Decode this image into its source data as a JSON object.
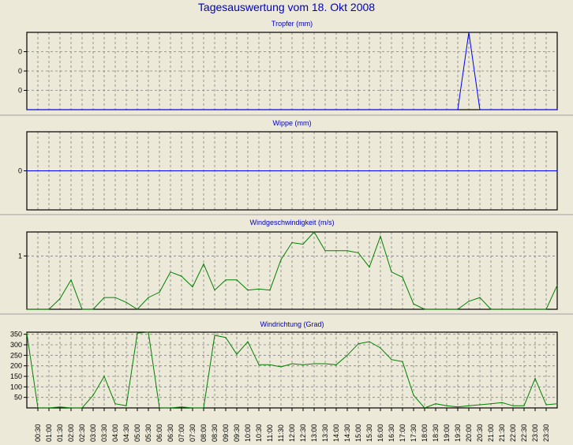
{
  "page": {
    "title": "Tagesauswertung vom 18. Okt 2008"
  },
  "colors": {
    "background": "#ece9d8",
    "plot_background": "#ece9d8",
    "grid": "#808080",
    "rain": "#0000ff",
    "wind": "#008000",
    "title": "#0000c0"
  },
  "x_labels": [
    "00:30",
    "01:00",
    "01:30",
    "02:00",
    "02:30",
    "03:00",
    "03:30",
    "04:00",
    "04:30",
    "05:00",
    "05:30",
    "06:00",
    "06:30",
    "07:00",
    "07:30",
    "08:00",
    "08:30",
    "09:00",
    "09:30",
    "10:00",
    "10:30",
    "11:00",
    "11:30",
    "12:00",
    "12:30",
    "13:00",
    "13:30",
    "14:00",
    "14:30",
    "15:00",
    "15:30",
    "16:00",
    "16:30",
    "17:00",
    "17:30",
    "18:00",
    "18:30",
    "19:00",
    "19:30",
    "20:00",
    "20:30",
    "21:00",
    "21:30",
    "22:00",
    "22:30",
    "23:00",
    "23:30"
  ],
  "chart_data": [
    {
      "type": "line",
      "title": "Tropfer (mm)",
      "ylim": [
        0,
        0.4
      ],
      "yticks": [
        0.1,
        0.2,
        0.3
      ],
      "ytick_labels": [
        "0",
        "0",
        "0"
      ],
      "grid": true,
      "color": "#0000ff",
      "x": [
        "00:00",
        "00:30",
        "01:00",
        "01:30",
        "02:00",
        "02:30",
        "03:00",
        "03:30",
        "04:00",
        "04:30",
        "05:00",
        "05:30",
        "06:00",
        "06:30",
        "07:00",
        "07:30",
        "08:00",
        "08:30",
        "09:00",
        "09:30",
        "10:00",
        "10:30",
        "11:00",
        "11:30",
        "12:00",
        "12:30",
        "13:00",
        "13:30",
        "14:00",
        "14:30",
        "15:00",
        "15:30",
        "16:00",
        "16:30",
        "17:00",
        "17:30",
        "18:00",
        "18:30",
        "19:00",
        "19:30",
        "20:00",
        "20:30",
        "21:00",
        "21:30",
        "22:00",
        "22:30",
        "23:00",
        "23:30",
        "24:00"
      ],
      "values": [
        0,
        0,
        0,
        0,
        0,
        0,
        0,
        0,
        0,
        0,
        0,
        0,
        0,
        0,
        0,
        0,
        0,
        0,
        0,
        0,
        0,
        0,
        0,
        0,
        0,
        0,
        0,
        0,
        0,
        0,
        0,
        0,
        0,
        0,
        0,
        0,
        0,
        0,
        0,
        0,
        0.4,
        0,
        0,
        0,
        0,
        0,
        0,
        0,
        0
      ]
    },
    {
      "type": "line",
      "title": "Wippe (mm)",
      "ylim": [
        -1,
        1
      ],
      "yticks": [
        0
      ],
      "ytick_labels": [
        "0"
      ],
      "grid": true,
      "color": "#0000ff",
      "x": [
        "00:00",
        "24:00"
      ],
      "values": [
        0,
        0
      ]
    },
    {
      "type": "line",
      "title": "Windgeschwindigkeit (m/s)",
      "ylim": [
        0,
        1.45
      ],
      "yticks": [
        1
      ],
      "ytick_labels": [
        "1"
      ],
      "grid": true,
      "color": "#008000",
      "x": [
        "00:00",
        "00:30",
        "01:00",
        "01:30",
        "02:00",
        "02:30",
        "03:00",
        "03:30",
        "04:00",
        "04:30",
        "05:00",
        "05:30",
        "06:00",
        "06:30",
        "07:00",
        "07:30",
        "08:00",
        "08:30",
        "09:00",
        "09:30",
        "10:00",
        "10:30",
        "11:00",
        "11:30",
        "12:00",
        "12:30",
        "13:00",
        "13:30",
        "14:00",
        "14:30",
        "15:00",
        "15:30",
        "16:00",
        "16:30",
        "17:00",
        "17:30",
        "18:00",
        "18:30",
        "19:00",
        "19:30",
        "20:00",
        "20:30",
        "21:00",
        "21:30",
        "22:00",
        "22:30",
        "23:00",
        "23:30",
        "24:00"
      ],
      "values": [
        0,
        0,
        0,
        0.2,
        0.55,
        0,
        0,
        0.22,
        0.22,
        0.13,
        0,
        0.22,
        0.32,
        0.7,
        0.62,
        0.42,
        0.85,
        0.36,
        0.55,
        0.55,
        0.36,
        0.38,
        0.36,
        0.93,
        1.25,
        1.22,
        1.45,
        1.1,
        1.1,
        1.1,
        1.06,
        0.79,
        1.37,
        0.7,
        0.6,
        0.1,
        0,
        0,
        0,
        0,
        0.15,
        0.22,
        0,
        0,
        0,
        0,
        0,
        0,
        0.45
      ]
    },
    {
      "type": "line",
      "title": "Windrichtung (Grad)",
      "ylim": [
        0,
        360
      ],
      "yticks": [
        50,
        100,
        150,
        200,
        250,
        300,
        350
      ],
      "ytick_labels": [
        "50",
        "100",
        "150",
        "200",
        "250",
        "300",
        "350"
      ],
      "grid": true,
      "color": "#008000",
      "x": [
        "00:00",
        "00:30",
        "01:00",
        "01:30",
        "02:00",
        "02:30",
        "03:00",
        "03:30",
        "04:00",
        "04:30",
        "05:00",
        "05:30",
        "06:00",
        "06:30",
        "07:00",
        "07:30",
        "08:00",
        "08:30",
        "09:00",
        "09:30",
        "10:00",
        "10:30",
        "11:00",
        "11:30",
        "12:00",
        "12:30",
        "13:00",
        "13:30",
        "14:00",
        "14:30",
        "15:00",
        "15:30",
        "16:00",
        "16:30",
        "17:00",
        "17:30",
        "18:00",
        "18:30",
        "19:00",
        "19:30",
        "20:00",
        "20:30",
        "21:00",
        "21:30",
        "22:00",
        "22:30",
        "23:00",
        "23:30",
        "24:00"
      ],
      "values": [
        355,
        0,
        0,
        5,
        0,
        0,
        60,
        150,
        20,
        10,
        355,
        360,
        0,
        0,
        5,
        0,
        0,
        345,
        335,
        255,
        315,
        205,
        205,
        195,
        210,
        205,
        210,
        210,
        205,
        250,
        305,
        315,
        285,
        230,
        220,
        60,
        0,
        20,
        10,
        5,
        10,
        15,
        20,
        25,
        10,
        10,
        140,
        15,
        20
      ]
    }
  ]
}
